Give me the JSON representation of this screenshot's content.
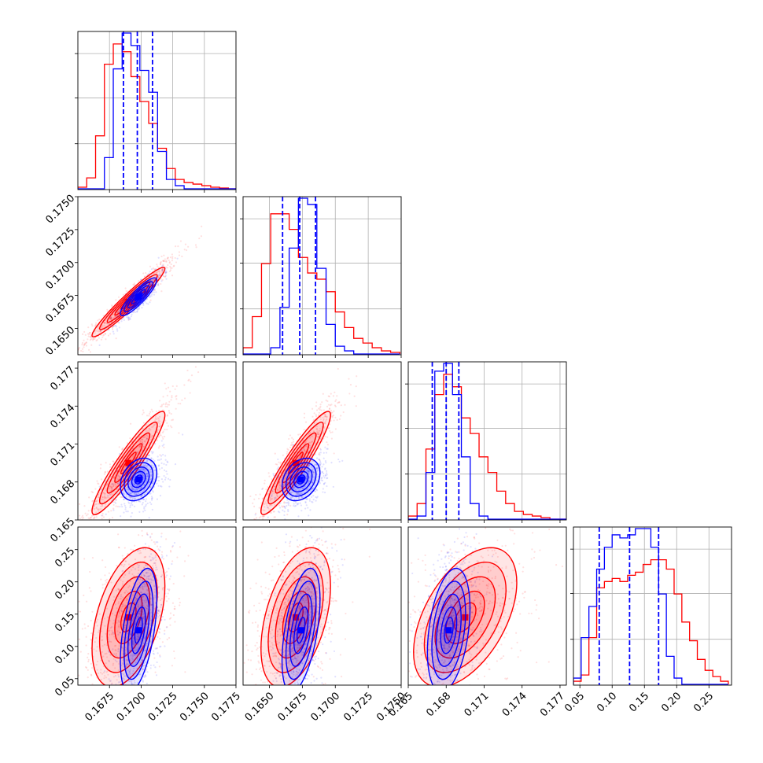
{
  "chart_data": {
    "type": "corner",
    "colors": {
      "series_a": "#ff0000",
      "series_b": "#0000ff",
      "grid": "#b0b0b0"
    },
    "grid": true,
    "legend": "none",
    "series": [
      {
        "color": "red"
      },
      {
        "color": "blue"
      }
    ],
    "parameters": [
      {
        "range": [
          0.165,
          0.1775
        ]
      },
      {
        "range": [
          0.163,
          0.175
        ]
      },
      {
        "range": [
          0.165,
          0.1775
        ]
      },
      {
        "range": [
          0.04,
          0.285
        ]
      }
    ],
    "x_tick_labels": [
      [
        "0.1675",
        "0.1700",
        "0.1725",
        "0.1750",
        "0.1775"
      ],
      [
        "0.1650",
        "0.1675",
        "0.1700",
        "0.1725",
        "0.1750"
      ],
      [
        "0.165",
        "0.168",
        "0.171",
        "0.174",
        "0.177"
      ],
      [
        "0.05",
        "0.10",
        "0.15",
        "0.20",
        "0.25"
      ]
    ],
    "y_tick_labels": [
      [],
      [
        "0.1650",
        "0.1675",
        "0.1700",
        "0.1725",
        "0.1750"
      ],
      [
        "0.165",
        "0.168",
        "0.171",
        "0.174",
        "0.177"
      ],
      [
        "0.05",
        "0.10",
        "0.15",
        "0.20",
        "0.25"
      ]
    ],
    "x_tick_values": [
      [
        0.1675,
        0.17,
        0.1725,
        0.175,
        0.1775
      ],
      [
        0.165,
        0.1675,
        0.17,
        0.1725,
        0.175
      ],
      [
        0.165,
        0.168,
        0.171,
        0.174,
        0.177
      ],
      [
        0.05,
        0.1,
        0.15,
        0.2,
        0.25
      ]
    ],
    "y_tick_values": [
      [],
      [
        0.165,
        0.1675,
        0.17,
        0.1725,
        0.175
      ],
      [
        0.165,
        0.168,
        0.171,
        0.174,
        0.177
      ],
      [
        0.05,
        0.1,
        0.15,
        0.2,
        0.25
      ]
    ],
    "diag_grid_fractions": [
      0.29,
      0.58,
      0.86
    ],
    "quantile_lines_blue": [
      [
        0.1686,
        0.1697,
        0.1709
      ],
      [
        0.166,
        0.1673,
        0.1685
      ],
      [
        0.1669,
        0.168,
        0.169
      ],
      [
        0.08,
        0.127,
        0.172
      ]
    ],
    "histograms": [
      {
        "edges": [
          0.165,
          0.1657,
          0.1664,
          0.1671,
          0.1678,
          0.1685,
          0.1692,
          0.1699,
          0.1706,
          0.1713,
          0.172,
          0.1727,
          0.1734,
          0.1741,
          0.1748,
          0.1755,
          0.1762,
          0.1769,
          0.1776
        ],
        "red": [
          0.01,
          0.07,
          0.34,
          0.8,
          0.93,
          0.88,
          0.72,
          0.56,
          0.42,
          0.26,
          0.13,
          0.06,
          0.04,
          0.03,
          0.02,
          0.01,
          0.005,
          0.0
        ],
        "blue": [
          0.0,
          0.0,
          0.0,
          0.2,
          0.77,
          1.0,
          0.92,
          0.76,
          0.62,
          0.24,
          0.06,
          0.02,
          0.0,
          0.0,
          0.0,
          0.0,
          0.0,
          0.0
        ]
      },
      {
        "edges": [
          0.163,
          0.1637,
          0.1644,
          0.1651,
          0.1658,
          0.1665,
          0.1672,
          0.1679,
          0.1686,
          0.1693,
          0.17,
          0.1707,
          0.1714,
          0.1721,
          0.1728,
          0.1735,
          0.1742,
          0.1749
        ],
        "red": [
          0.04,
          0.24,
          0.58,
          0.9,
          0.9,
          0.8,
          0.62,
          0.52,
          0.48,
          0.4,
          0.27,
          0.17,
          0.1,
          0.07,
          0.04,
          0.02,
          0.01
        ],
        "blue": [
          0.0,
          0.0,
          0.0,
          0.04,
          0.3,
          0.68,
          1.0,
          0.96,
          0.55,
          0.19,
          0.05,
          0.02,
          0.0,
          0.0,
          0.0,
          0.0,
          0.0
        ]
      },
      {
        "edges": [
          0.165,
          0.1657,
          0.1664,
          0.1671,
          0.1678,
          0.1685,
          0.1692,
          0.1699,
          0.1706,
          0.1713,
          0.172,
          0.1727,
          0.1734,
          0.1741,
          0.1748,
          0.1755,
          0.1762,
          0.1769,
          0.1776
        ],
        "red": [
          0.02,
          0.1,
          0.45,
          0.8,
          0.93,
          0.85,
          0.65,
          0.55,
          0.4,
          0.3,
          0.18,
          0.1,
          0.05,
          0.03,
          0.02,
          0.01,
          0.0,
          0.0
        ],
        "blue": [
          0.0,
          0.02,
          0.3,
          0.95,
          1.0,
          0.8,
          0.4,
          0.1,
          0.02,
          0.0,
          0.0,
          0.0,
          0.0,
          0.0,
          0.0,
          0.0,
          0.0,
          0.0
        ]
      },
      {
        "edges": [
          0.04,
          0.052,
          0.064,
          0.076,
          0.088,
          0.1,
          0.112,
          0.124,
          0.136,
          0.148,
          0.16,
          0.172,
          0.184,
          0.196,
          0.208,
          0.22,
          0.232,
          0.244,
          0.256,
          0.268,
          0.28
        ],
        "red": [
          0.02,
          0.06,
          0.3,
          0.62,
          0.66,
          0.68,
          0.66,
          0.7,
          0.72,
          0.77,
          0.8,
          0.8,
          0.74,
          0.58,
          0.4,
          0.28,
          0.16,
          0.09,
          0.05,
          0.02
        ],
        "blue": [
          0.04,
          0.3,
          0.5,
          0.74,
          0.88,
          0.96,
          0.94,
          0.96,
          1.0,
          1.0,
          0.88,
          0.58,
          0.18,
          0.04,
          0.0,
          0.0,
          0.0,
          0.0,
          0.0,
          0.0
        ]
      }
    ],
    "pairs": [
      {
        "row": 1,
        "col": 0,
        "red": {
          "mean": [
            0.169,
            0.167
          ],
          "std": [
            0.0012,
            0.0011
          ],
          "rho": 0.96
        },
        "blue": {
          "mean": [
            0.1698,
            0.1674
          ],
          "std": [
            0.0006,
            0.0006
          ],
          "rho": 0.88
        }
      },
      {
        "row": 2,
        "col": 0,
        "red": {
          "mean": [
            0.169,
            0.1695
          ],
          "std": [
            0.0012,
            0.0017
          ],
          "rho": 0.93
        },
        "blue": {
          "mean": [
            0.1698,
            0.1682
          ],
          "std": [
            0.0006,
            0.0007
          ],
          "rho": 0.3
        }
      },
      {
        "row": 2,
        "col": 1,
        "red": {
          "mean": [
            0.167,
            0.1695
          ],
          "std": [
            0.0011,
            0.0017
          ],
          "rho": 0.93
        },
        "blue": {
          "mean": [
            0.1674,
            0.1682
          ],
          "std": [
            0.0006,
            0.0007
          ],
          "rho": 0.3
        }
      },
      {
        "row": 3,
        "col": 0,
        "red": {
          "mean": [
            0.169,
            0.145
          ],
          "std": [
            0.0012,
            0.045
          ],
          "rho": 0.45
        },
        "blue": {
          "mean": [
            0.1698,
            0.125
          ],
          "std": [
            0.0006,
            0.04
          ],
          "rho": 0.5
        }
      },
      {
        "row": 3,
        "col": 1,
        "red": {
          "mean": [
            0.167,
            0.145
          ],
          "std": [
            0.0011,
            0.045
          ],
          "rho": 0.45
        },
        "blue": {
          "mean": [
            0.1674,
            0.125
          ],
          "std": [
            0.0006,
            0.04
          ],
          "rho": 0.5
        }
      },
      {
        "row": 3,
        "col": 2,
        "red": {
          "mean": [
            0.1695,
            0.145
          ],
          "std": [
            0.0017,
            0.045
          ],
          "rho": 0.5
        },
        "blue": {
          "mean": [
            0.1682,
            0.125
          ],
          "std": [
            0.0007,
            0.04
          ],
          "rho": 0.35
        }
      }
    ]
  }
}
